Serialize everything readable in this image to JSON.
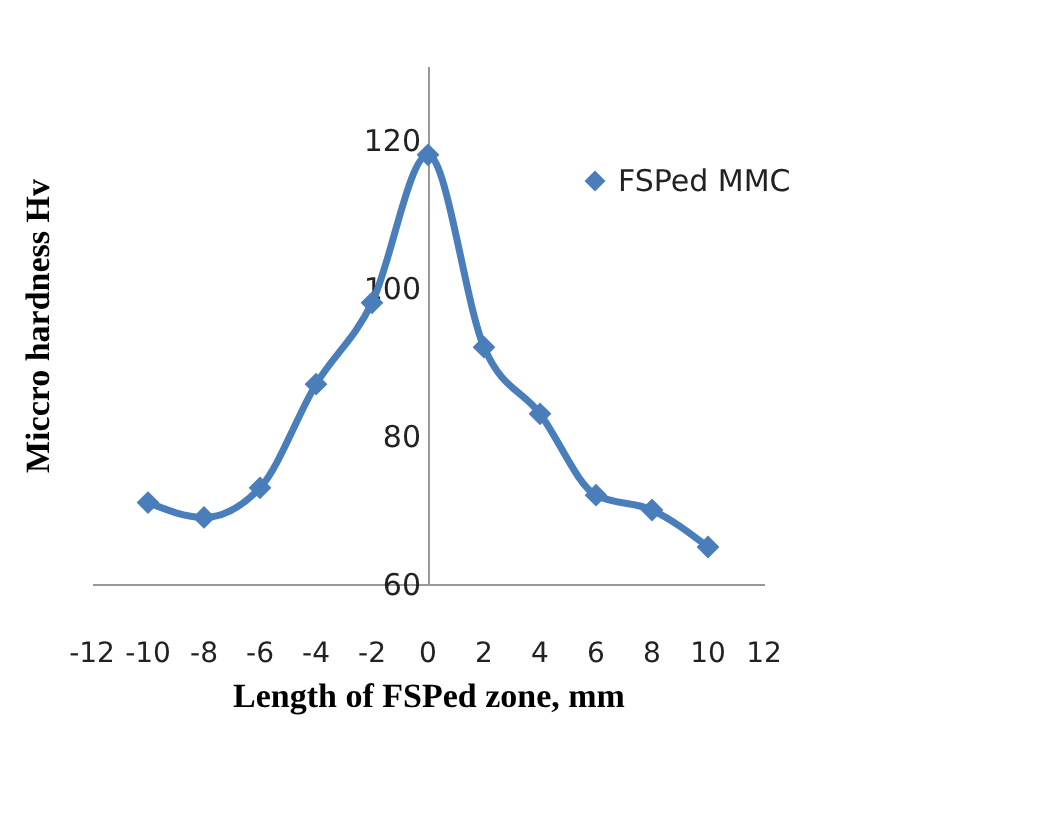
{
  "chart_data": {
    "type": "line",
    "xlabel": "Length of FSPed zone, mm",
    "ylabel": "Miccro hardness Hv",
    "x": [
      -10,
      -8,
      -6,
      -4,
      -2,
      0,
      2,
      4,
      6,
      8,
      10
    ],
    "series": [
      {
        "name": "FSPed MMC",
        "color": "#4a7ebb",
        "values": [
          71,
          69,
          73,
          87,
          98,
          118,
          92,
          83,
          72,
          70,
          65
        ]
      }
    ],
    "xlim": [
      -12,
      12
    ],
    "xticks": [
      -12,
      -10,
      -8,
      -6,
      -4,
      -2,
      0,
      2,
      4,
      6,
      8,
      10,
      12
    ],
    "ylim": [
      60,
      130
    ],
    "yticks": [
      60,
      80,
      100,
      120
    ],
    "grid": false,
    "legend": "top right",
    "marker": "diamond",
    "line_style": "solid"
  }
}
